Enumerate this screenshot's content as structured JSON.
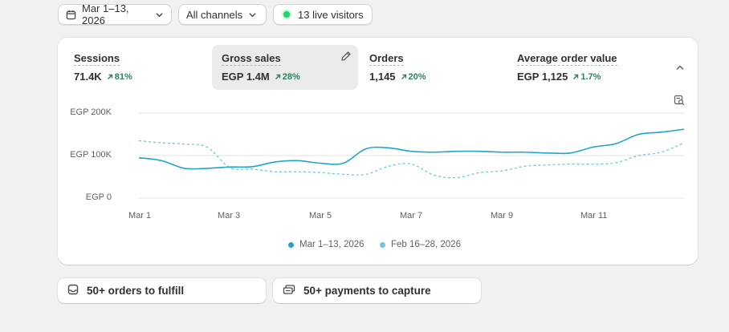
{
  "filters": {
    "date_range": "Mar 1–13, 2026",
    "channel": "All channels",
    "live_visitors": "13 live visitors"
  },
  "metrics": [
    {
      "label": "Sessions",
      "value": "71.4K",
      "delta": "81%"
    },
    {
      "label": "Gross sales",
      "value": "EGP 1.4M",
      "delta": "28%"
    },
    {
      "label": "Orders",
      "value": "1,145",
      "delta": "20%"
    },
    {
      "label": "Average order value",
      "value": "EGP 1,125",
      "delta": "1.7%"
    }
  ],
  "colors": {
    "accent": "#1ea7c9",
    "comparison": "#6fc6de",
    "positive": "#29845a",
    "live": "#21d46b"
  },
  "chart_data": {
    "type": "line",
    "y_ticks": [
      "EGP 200K",
      "EGP 100K",
      "EGP 0"
    ],
    "ylim": [
      0,
      200000
    ],
    "x_ticks": [
      "Mar 1",
      "Mar 3",
      "Mar 5",
      "Mar 7",
      "Mar 9",
      "Mar 11"
    ],
    "x": [
      1,
      1.5,
      2,
      2.5,
      3,
      3.5,
      4,
      4.5,
      5,
      5.5,
      6,
      6.5,
      7,
      7.5,
      8,
      8.5,
      9,
      9.5,
      10,
      10.5,
      11,
      11.5,
      12,
      12.5,
      13
    ],
    "series": [
      {
        "name": "Mar 1–13, 2026",
        "style": "solid",
        "values": [
          95000,
          88000,
          70000,
          70000,
          73000,
          74000,
          85000,
          88000,
          82000,
          82000,
          116000,
          118000,
          110000,
          108000,
          110000,
          110000,
          108000,
          108000,
          106000,
          106000,
          120000,
          128000,
          150000,
          155000,
          162000
        ]
      },
      {
        "name": "Feb 16–28, 2026",
        "style": "dashed",
        "values": [
          135000,
          130000,
          127000,
          120000,
          72000,
          68000,
          62000,
          62000,
          60000,
          56000,
          56000,
          75000,
          80000,
          54000,
          48000,
          60000,
          64000,
          75000,
          78000,
          80000,
          80000,
          83000,
          100000,
          108000,
          130000
        ]
      }
    ],
    "legend": "bottom-center",
    "grid": true
  }
}
